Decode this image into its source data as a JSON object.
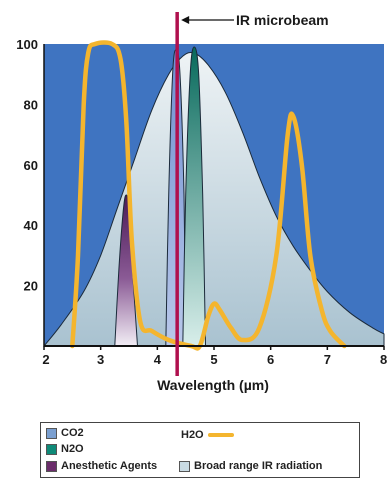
{
  "chart_data": {
    "type": "area",
    "xlabel": "Wavelength (µm)",
    "xlim": [
      2,
      8
    ],
    "ylim": [
      0,
      100
    ],
    "x_ticks": [
      2,
      3,
      4,
      5,
      6,
      7,
      8
    ],
    "y_ticks": [
      20,
      40,
      60,
      80,
      100
    ],
    "annotation": "IR microbeam",
    "annotation_x": 4.35,
    "series": [
      {
        "name": "Broad range IR radiation",
        "kind": "fill",
        "color": "#c9dbe4",
        "points": [
          [
            2.0,
            0
          ],
          [
            2.3,
            7
          ],
          [
            2.7,
            18
          ],
          [
            3.0,
            30
          ],
          [
            3.3,
            46
          ],
          [
            3.6,
            62
          ],
          [
            3.9,
            78
          ],
          [
            4.2,
            90
          ],
          [
            4.45,
            96
          ],
          [
            4.65,
            97
          ],
          [
            4.9,
            93
          ],
          [
            5.2,
            84
          ],
          [
            5.5,
            71
          ],
          [
            5.8,
            56
          ],
          [
            6.1,
            43
          ],
          [
            6.4,
            33
          ],
          [
            6.7,
            25
          ],
          [
            7.0,
            18
          ],
          [
            7.4,
            11
          ],
          [
            7.8,
            6
          ],
          [
            8.0,
            4
          ]
        ]
      },
      {
        "name": "Anesthetic Agents",
        "kind": "fill",
        "color": "#6b2d6b",
        "points": [
          [
            3.25,
            0
          ],
          [
            3.32,
            25
          ],
          [
            3.4,
            45
          ],
          [
            3.45,
            50
          ],
          [
            3.5,
            45
          ],
          [
            3.58,
            20
          ],
          [
            3.65,
            0
          ]
        ]
      },
      {
        "name": "CO2",
        "kind": "fill",
        "color": "#7a9fd0",
        "points": [
          [
            4.15,
            0
          ],
          [
            4.2,
            50
          ],
          [
            4.27,
            90
          ],
          [
            4.33,
            98
          ],
          [
            4.4,
            90
          ],
          [
            4.47,
            50
          ],
          [
            4.5,
            0
          ]
        ]
      },
      {
        "name": "N2O",
        "kind": "fill",
        "color": "#0e8a78",
        "points": [
          [
            4.45,
            0
          ],
          [
            4.5,
            50
          ],
          [
            4.58,
            90
          ],
          [
            4.65,
            99
          ],
          [
            4.73,
            90
          ],
          [
            4.8,
            50
          ],
          [
            4.85,
            0
          ]
        ]
      },
      {
        "name": "H2O",
        "kind": "line",
        "color": "#f4b52e",
        "points": [
          [
            2.5,
            0
          ],
          [
            2.6,
            30
          ],
          [
            2.7,
            80
          ],
          [
            2.78,
            97
          ],
          [
            2.9,
            100
          ],
          [
            3.2,
            100
          ],
          [
            3.35,
            95
          ],
          [
            3.45,
            75
          ],
          [
            3.55,
            35
          ],
          [
            3.7,
            8
          ],
          [
            3.9,
            5
          ],
          [
            4.2,
            2
          ],
          [
            4.6,
            0
          ],
          [
            4.75,
            0
          ],
          [
            4.9,
            10
          ],
          [
            5.0,
            14
          ],
          [
            5.1,
            12
          ],
          [
            5.3,
            6
          ],
          [
            5.5,
            2
          ],
          [
            5.8,
            6
          ],
          [
            6.1,
            30
          ],
          [
            6.3,
            70
          ],
          [
            6.4,
            76
          ],
          [
            6.55,
            60
          ],
          [
            6.7,
            30
          ],
          [
            6.9,
            12
          ],
          [
            7.05,
            5
          ],
          [
            7.3,
            0
          ]
        ]
      }
    ],
    "legend": [
      {
        "label": "CO2",
        "type": "box",
        "color": "#7a9fd0"
      },
      {
        "label": "N2O",
        "type": "box",
        "color": "#0e8a78"
      },
      {
        "label": "Anesthetic Agents",
        "type": "box",
        "color": "#6b2d6b"
      },
      {
        "label": "Broad range IR radiation",
        "type": "box",
        "color": "#c9dbe4"
      },
      {
        "label": "H2O",
        "type": "line",
        "color": "#f4b52e"
      }
    ],
    "colors": {
      "background": "#3f74c1",
      "microbeam": "#b0104e",
      "axis": "#111111"
    }
  }
}
